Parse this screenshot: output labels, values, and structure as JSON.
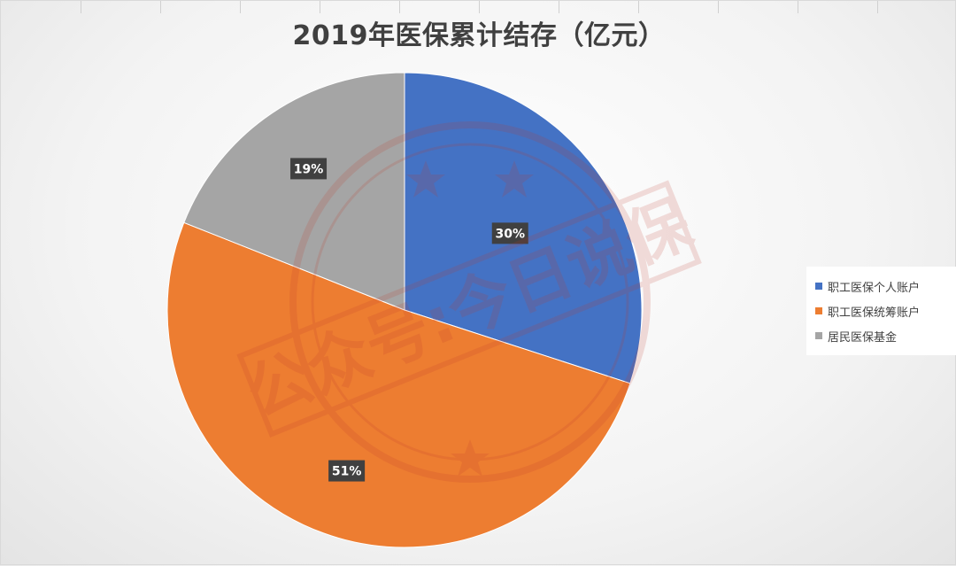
{
  "chart_data": {
    "type": "pie",
    "title": "2019年医保累计结存（亿元）",
    "categories": [
      "职工医保个人账户",
      "职工医保统筹账户",
      "居民医保基金"
    ],
    "values": [
      30,
      51,
      19
    ],
    "data_labels": [
      "30%",
      "51%",
      "19%"
    ],
    "colors": [
      "#4472C4",
      "#ED7D31",
      "#A5A5A5"
    ],
    "start_angle_deg": 0,
    "direction": "clockwise",
    "legend_position": "right"
  },
  "watermark": {
    "text": "公众号:今日说保"
  }
}
